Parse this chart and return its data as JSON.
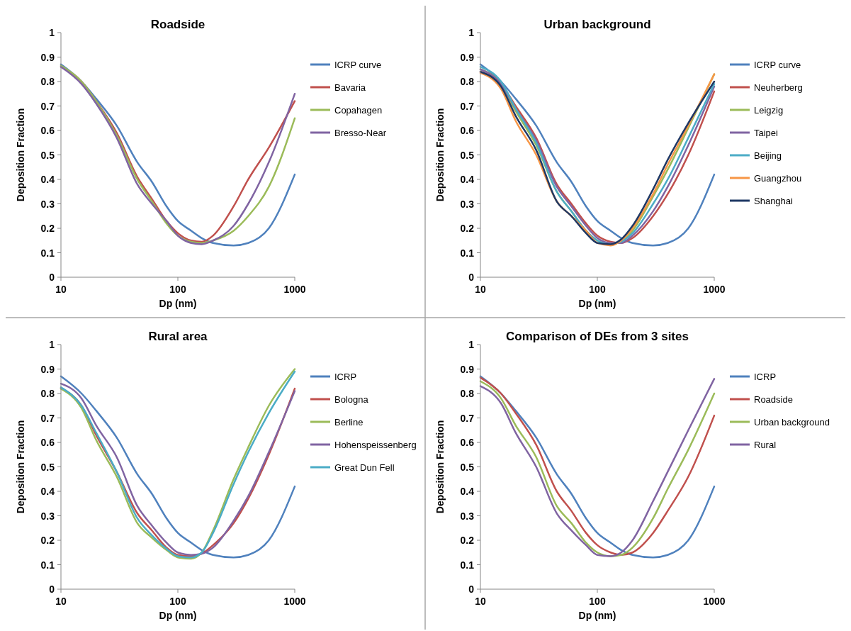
{
  "chart_data": [
    {
      "type": "line",
      "title": "Roadside",
      "xlabel": "Dp (nm)",
      "ylabel": "Deposition Fraction",
      "log": "x",
      "xlim": [
        10,
        1000
      ],
      "xticks": [
        10,
        100,
        1000
      ],
      "ylim": [
        0,
        1
      ],
      "yticks": [
        0,
        0.1,
        0.2,
        0.3,
        0.4,
        0.5,
        0.6,
        0.7,
        0.8,
        0.9,
        1
      ],
      "legend": "right",
      "grid": false,
      "marker": "none",
      "line_style": "solid",
      "x": [
        10,
        15,
        20,
        30,
        45,
        60,
        80,
        100,
        130,
        160,
        200,
        300,
        400,
        600,
        1000
      ],
      "series": [
        {
          "name": "ICRP curve",
          "color": "#4f81bd",
          "values": [
            0.87,
            0.8,
            0.73,
            0.62,
            0.47,
            0.39,
            0.29,
            0.23,
            0.19,
            0.16,
            0.14,
            0.13,
            0.14,
            0.2,
            0.42
          ]
        },
        {
          "name": "Bavaria",
          "color": "#c0504d",
          "values": [
            0.86,
            0.8,
            0.72,
            0.59,
            0.41,
            0.32,
            0.23,
            0.18,
            0.15,
            0.145,
            0.17,
            0.29,
            0.4,
            0.53,
            0.72
          ]
        },
        {
          "name": "Copahagen",
          "color": "#9bbb59",
          "values": [
            0.865,
            0.8,
            0.72,
            0.58,
            0.4,
            0.31,
            0.22,
            0.17,
            0.145,
            0.14,
            0.15,
            0.19,
            0.25,
            0.37,
            0.65
          ]
        },
        {
          "name": "Bresso-Near",
          "color": "#8064a2",
          "values": [
            0.86,
            0.79,
            0.71,
            0.57,
            0.38,
            0.3,
            0.23,
            0.17,
            0.14,
            0.135,
            0.15,
            0.21,
            0.3,
            0.47,
            0.75
          ]
        }
      ]
    },
    {
      "type": "line",
      "title": "Urban background",
      "xlabel": "Dp (nm)",
      "ylabel": "Deposition Fraction",
      "log": "x",
      "xlim": [
        10,
        1000
      ],
      "xticks": [
        10,
        100,
        1000
      ],
      "ylim": [
        0,
        1
      ],
      "yticks": [
        0,
        0.1,
        0.2,
        0.3,
        0.4,
        0.5,
        0.6,
        0.7,
        0.8,
        0.9,
        1
      ],
      "legend": "right",
      "grid": false,
      "marker": "none",
      "line_style": "solid",
      "x": [
        10,
        15,
        20,
        30,
        45,
        60,
        80,
        100,
        130,
        160,
        200,
        300,
        400,
        600,
        1000
      ],
      "series": [
        {
          "name": "ICRP curve",
          "color": "#4f81bd",
          "values": [
            0.87,
            0.8,
            0.73,
            0.62,
            0.47,
            0.39,
            0.29,
            0.23,
            0.19,
            0.16,
            0.14,
            0.13,
            0.14,
            0.2,
            0.42
          ]
        },
        {
          "name": "Neuherberg",
          "color": "#c0504d",
          "values": [
            0.84,
            0.79,
            0.7,
            0.57,
            0.38,
            0.3,
            0.22,
            0.17,
            0.145,
            0.14,
            0.16,
            0.25,
            0.34,
            0.5,
            0.76
          ]
        },
        {
          "name": "Leigzig",
          "color": "#9bbb59",
          "values": [
            0.85,
            0.79,
            0.68,
            0.54,
            0.35,
            0.27,
            0.19,
            0.15,
            0.135,
            0.145,
            0.19,
            0.33,
            0.44,
            0.61,
            0.83
          ]
        },
        {
          "name": "Taipei",
          "color": "#8064a2",
          "values": [
            0.85,
            0.79,
            0.69,
            0.56,
            0.37,
            0.29,
            0.21,
            0.16,
            0.14,
            0.14,
            0.17,
            0.27,
            0.37,
            0.54,
            0.78
          ]
        },
        {
          "name": "Beijing",
          "color": "#4bacc6",
          "values": [
            0.86,
            0.8,
            0.69,
            0.55,
            0.35,
            0.27,
            0.19,
            0.15,
            0.135,
            0.145,
            0.18,
            0.3,
            0.4,
            0.57,
            0.79
          ]
        },
        {
          "name": "Guangzhou",
          "color": "#f79646",
          "values": [
            0.835,
            0.77,
            0.64,
            0.5,
            0.31,
            0.25,
            0.19,
            0.14,
            0.13,
            0.15,
            0.2,
            0.34,
            0.46,
            0.62,
            0.83
          ]
        },
        {
          "name": "Shanghai",
          "color": "#1f3864",
          "values": [
            0.84,
            0.78,
            0.66,
            0.52,
            0.31,
            0.25,
            0.18,
            0.14,
            0.135,
            0.155,
            0.21,
            0.36,
            0.48,
            0.63,
            0.8
          ]
        }
      ]
    },
    {
      "type": "line",
      "title": "Rural area",
      "xlabel": "Dp (nm)",
      "ylabel": "Deposition Fraction",
      "log": "x",
      "xlim": [
        10,
        1000
      ],
      "xticks": [
        10,
        100,
        1000
      ],
      "ylim": [
        0,
        1
      ],
      "yticks": [
        0,
        0.1,
        0.2,
        0.3,
        0.4,
        0.5,
        0.6,
        0.7,
        0.8,
        0.9,
        1
      ],
      "legend": "right",
      "grid": false,
      "marker": "none",
      "line_style": "solid",
      "x": [
        10,
        15,
        20,
        30,
        45,
        60,
        80,
        100,
        130,
        160,
        200,
        300,
        400,
        600,
        1000
      ],
      "series": [
        {
          "name": "ICRP",
          "color": "#4f81bd",
          "values": [
            0.87,
            0.8,
            0.73,
            0.62,
            0.47,
            0.39,
            0.29,
            0.23,
            0.19,
            0.16,
            0.14,
            0.13,
            0.14,
            0.2,
            0.42
          ]
        },
        {
          "name": "Bologna",
          "color": "#c0504d",
          "values": [
            0.82,
            0.75,
            0.63,
            0.48,
            0.31,
            0.24,
            0.17,
            0.14,
            0.135,
            0.145,
            0.18,
            0.27,
            0.37,
            0.55,
            0.82
          ]
        },
        {
          "name": "Berline",
          "color": "#9bbb59",
          "values": [
            0.82,
            0.74,
            0.61,
            0.46,
            0.27,
            0.21,
            0.16,
            0.13,
            0.125,
            0.15,
            0.24,
            0.45,
            0.58,
            0.75,
            0.9
          ]
        },
        {
          "name": "Hohenspeissenberg",
          "color": "#8064a2",
          "values": [
            0.84,
            0.78,
            0.67,
            0.54,
            0.34,
            0.26,
            0.19,
            0.15,
            0.14,
            0.145,
            0.17,
            0.28,
            0.38,
            0.56,
            0.81
          ]
        },
        {
          "name": "Great Dun Fell",
          "color": "#4bacc6",
          "values": [
            0.825,
            0.75,
            0.64,
            0.48,
            0.29,
            0.22,
            0.165,
            0.135,
            0.13,
            0.15,
            0.23,
            0.43,
            0.56,
            0.72,
            0.89
          ]
        }
      ]
    },
    {
      "type": "line",
      "title": "Comparison of DEs from 3 sites",
      "xlabel": "Dp (nm)",
      "ylabel": "Deposition Fraction",
      "log": "x",
      "xlim": [
        10,
        1000
      ],
      "xticks": [
        10,
        100,
        1000
      ],
      "ylim": [
        0,
        1
      ],
      "yticks": [
        0,
        0.1,
        0.2,
        0.3,
        0.4,
        0.5,
        0.6,
        0.7,
        0.8,
        0.9,
        1
      ],
      "legend": "right",
      "grid": false,
      "marker": "none",
      "line_style": "solid",
      "x": [
        10,
        15,
        20,
        30,
        45,
        60,
        80,
        100,
        130,
        160,
        200,
        300,
        400,
        600,
        1000
      ],
      "series": [
        {
          "name": "ICRP",
          "color": "#4f81bd",
          "values": [
            0.87,
            0.8,
            0.73,
            0.62,
            0.47,
            0.39,
            0.29,
            0.23,
            0.19,
            0.16,
            0.14,
            0.13,
            0.14,
            0.2,
            0.42
          ]
        },
        {
          "name": "Roadside",
          "color": "#c0504d",
          "values": [
            0.865,
            0.8,
            0.72,
            0.59,
            0.4,
            0.32,
            0.23,
            0.18,
            0.15,
            0.14,
            0.15,
            0.23,
            0.32,
            0.46,
            0.71
          ]
        },
        {
          "name": "Urban background",
          "color": "#9bbb59",
          "values": [
            0.85,
            0.78,
            0.67,
            0.54,
            0.34,
            0.27,
            0.19,
            0.15,
            0.135,
            0.14,
            0.17,
            0.29,
            0.41,
            0.57,
            0.8
          ]
        },
        {
          "name": "Rural",
          "color": "#8064a2",
          "values": [
            0.83,
            0.76,
            0.64,
            0.5,
            0.31,
            0.24,
            0.18,
            0.14,
            0.135,
            0.15,
            0.2,
            0.36,
            0.48,
            0.65,
            0.86
          ]
        }
      ]
    }
  ]
}
